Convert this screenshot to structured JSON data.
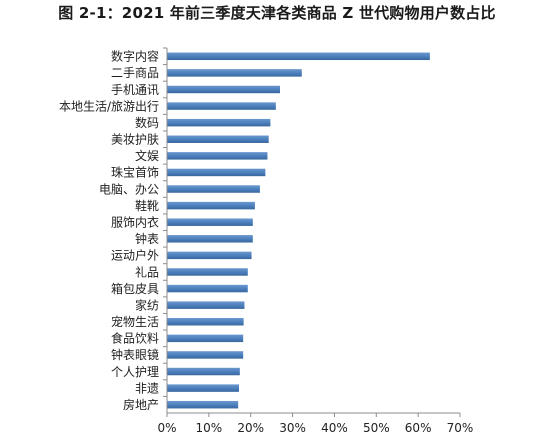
{
  "title": "图 2-1：2021 年前三季度天津各类商品 Z 世代购物用户数占比",
  "chart_data": {
    "type": "bar",
    "orientation": "horizontal",
    "title": "图 2-1：2021 年前三季度天津各类商品 Z 世代购物用户数占比",
    "xlabel": "",
    "ylabel": "",
    "categories": [
      "数字内容",
      "二手商品",
      "手机通讯",
      "本地生活/旅游出行",
      "数码",
      "美妆护肤",
      "文娱",
      "珠宝首饰",
      "电脑、办公",
      "鞋靴",
      "服饰内衣",
      "钟表",
      "运动户外",
      "礼品",
      "箱包皮具",
      "家纺",
      "宠物生活",
      "食品饮料",
      "钟表眼镜",
      "个人护理",
      "非遗",
      "房地产"
    ],
    "values": [
      62.8,
      32.2,
      27.0,
      26.0,
      24.7,
      24.3,
      24.0,
      23.5,
      22.2,
      21.0,
      20.5,
      20.5,
      20.2,
      19.3,
      19.3,
      18.5,
      18.3,
      18.2,
      18.2,
      17.4,
      17.2,
      17.0
    ],
    "xlim": [
      0,
      70
    ],
    "xticks": [
      "0%",
      "10%",
      "20%",
      "30%",
      "40%",
      "50%",
      "60%",
      "70%"
    ],
    "bar_color": "#4a7ebb",
    "grid": false,
    "legend": "none"
  }
}
